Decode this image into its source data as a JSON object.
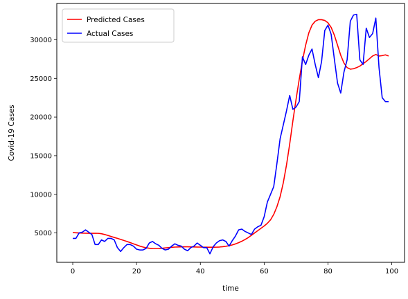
{
  "chart_data": {
    "type": "line",
    "xlabel": "time",
    "ylabel": "Covid-19 Cases",
    "xlim": [
      -5,
      104
    ],
    "ylim": [
      1200,
      34700
    ],
    "xticks": [
      0,
      20,
      40,
      60,
      80,
      100
    ],
    "yticks": [
      5000,
      10000,
      15000,
      20000,
      25000,
      30000
    ],
    "grid": false,
    "legend": "top-left",
    "series": [
      {
        "name": "Predicted Cases",
        "color": "#ff0000",
        "x": [
          0,
          1,
          2,
          3,
          4,
          5,
          6,
          7,
          8,
          9,
          10,
          11,
          12,
          13,
          14,
          15,
          16,
          17,
          18,
          19,
          20,
          21,
          22,
          23,
          24,
          25,
          26,
          27,
          28,
          29,
          30,
          31,
          32,
          33,
          34,
          35,
          36,
          37,
          38,
          39,
          40,
          41,
          42,
          43,
          44,
          45,
          46,
          47,
          48,
          49,
          50,
          51,
          52,
          53,
          54,
          55,
          56,
          57,
          58,
          59,
          60,
          61,
          62,
          63,
          64,
          65,
          66,
          67,
          68,
          69,
          70,
          71,
          72,
          73,
          74,
          75,
          76,
          77,
          78,
          79,
          80,
          81,
          82,
          83,
          84,
          85,
          86,
          87,
          88,
          89,
          90,
          91,
          92,
          93,
          94,
          95,
          96,
          97,
          98,
          99
        ],
        "y": [
          5050,
          5020,
          5000,
          4980,
          4970,
          4960,
          4960,
          4960,
          4950,
          4900,
          4800,
          4680,
          4550,
          4420,
          4300,
          4170,
          4030,
          3900,
          3750,
          3600,
          3450,
          3300,
          3180,
          3080,
          3020,
          2990,
          2980,
          2990,
          3020,
          3060,
          3100,
          3140,
          3170,
          3190,
          3200,
          3210,
          3210,
          3200,
          3190,
          3180,
          3170,
          3160,
          3150,
          3150,
          3150,
          3160,
          3180,
          3220,
          3280,
          3350,
          3450,
          3580,
          3740,
          3930,
          4150,
          4400,
          4700,
          5000,
          5300,
          5600,
          5900,
          6250,
          6700,
          7400,
          8400,
          9700,
          11500,
          13800,
          16500,
          19500,
          22300,
          24900,
          27300,
          29300,
          30900,
          31900,
          32400,
          32600,
          32600,
          32500,
          32200,
          31600,
          30600,
          29300,
          28000,
          27000,
          26400,
          26200,
          26250,
          26400,
          26600,
          26900,
          27200,
          27550,
          27900,
          28100,
          27900,
          27950,
          28050,
          27900
        ]
      },
      {
        "name": "Actual Cases",
        "color": "#0000ff",
        "x": [
          0,
          1,
          2,
          3,
          4,
          5,
          6,
          7,
          8,
          9,
          10,
          11,
          12,
          13,
          14,
          15,
          16,
          17,
          18,
          19,
          20,
          21,
          22,
          23,
          24,
          25,
          26,
          27,
          28,
          29,
          30,
          31,
          32,
          33,
          34,
          35,
          36,
          37,
          38,
          39,
          40,
          41,
          42,
          43,
          44,
          45,
          46,
          47,
          48,
          49,
          50,
          51,
          52,
          53,
          54,
          55,
          56,
          57,
          58,
          59,
          60,
          61,
          62,
          63,
          64,
          65,
          66,
          67,
          68,
          69,
          70,
          71,
          72,
          73,
          74,
          75,
          76,
          77,
          78,
          79,
          80,
          81,
          82,
          83,
          84,
          85,
          86,
          87,
          88,
          89,
          90,
          91,
          92,
          93,
          94,
          95,
          96,
          97,
          98,
          99
        ],
        "y": [
          4300,
          4300,
          5000,
          5100,
          5400,
          5100,
          4800,
          3500,
          3500,
          4100,
          3900,
          4300,
          4300,
          4100,
          3100,
          2600,
          3100,
          3500,
          3500,
          3300,
          2900,
          2800,
          2800,
          3000,
          3700,
          3900,
          3600,
          3400,
          3000,
          2800,
          2900,
          3300,
          3600,
          3400,
          3300,
          2900,
          2700,
          3100,
          3300,
          3700,
          3400,
          3100,
          3100,
          2300,
          3200,
          3700,
          4000,
          4100,
          3900,
          3300,
          4000,
          4600,
          5400,
          5500,
          5200,
          5000,
          4800,
          5500,
          5800,
          6000,
          7100,
          9000,
          10000,
          11000,
          14000,
          17200,
          19000,
          20800,
          22800,
          21000,
          21300,
          22000,
          27800,
          26800,
          28000,
          28800,
          26800,
          25100,
          27200,
          31200,
          31900,
          30700,
          27500,
          24400,
          23100,
          25800,
          27400,
          32400,
          33200,
          33300,
          27400,
          26800,
          31500,
          30300,
          30800,
          32800,
          26400,
          22500,
          22000,
          22000
        ]
      }
    ]
  }
}
